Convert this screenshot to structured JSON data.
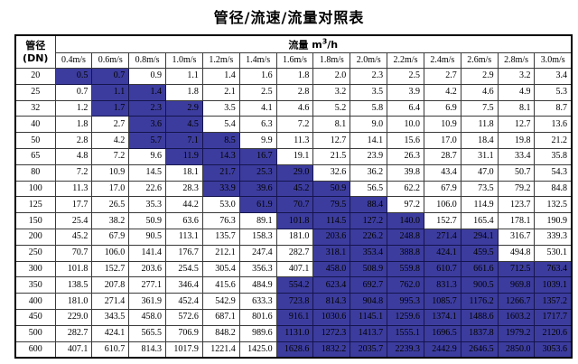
{
  "title": "管径/流速/流量对照表",
  "colors": {
    "highlight": "#3C3C9E",
    "grid": "#3a3a3a",
    "outer_border": "#000000",
    "text": "#000000"
  },
  "table": {
    "corner": {
      "line1": "管径",
      "line2": "(DN)"
    },
    "flow_header": {
      "label": "流量",
      "unit_base": "m",
      "unit_sup": "3",
      "unit_rest": "/h"
    },
    "velocity_headers": [
      "0.4m/s",
      "0.6m/s",
      "0.8m/s",
      "1.0m/s",
      "1.2m/s",
      "1.4m/s",
      "1.6m/s",
      "1.8m/s",
      "2.0m/s",
      "2.2m/s",
      "2.4m/s",
      "2.6m/s",
      "2.8m/s",
      "3.0m/s"
    ],
    "rows": [
      {
        "dn": "20",
        "values": [
          "0.5",
          "0.7",
          "0.9",
          "1.1",
          "1.4",
          "1.6",
          "1.8",
          "2.0",
          "2.3",
          "2.5",
          "2.7",
          "2.9",
          "3.2",
          "3.4"
        ],
        "highlight": [
          0,
          1
        ]
      },
      {
        "dn": "25",
        "values": [
          "0.7",
          "1.1",
          "1.4",
          "1.8",
          "2.1",
          "2.5",
          "2.8",
          "3.2",
          "3.5",
          "3.9",
          "4.2",
          "4.6",
          "4.9",
          "5.3"
        ],
        "highlight": [
          1,
          2
        ]
      },
      {
        "dn": "32",
        "values": [
          "1.2",
          "1.7",
          "2.3",
          "2.9",
          "3.5",
          "4.1",
          "4.6",
          "5.2",
          "5.8",
          "6.4",
          "6.9",
          "7.5",
          "8.1",
          "8.7"
        ],
        "highlight": [
          1,
          3
        ]
      },
      {
        "dn": "40",
        "values": [
          "1.8",
          "2.7",
          "3.6",
          "4.5",
          "5.4",
          "6.3",
          "7.2",
          "8.1",
          "9.0",
          "10.0",
          "10.9",
          "11.8",
          "12.7",
          "13.6"
        ],
        "highlight": [
          2,
          3
        ]
      },
      {
        "dn": "50",
        "values": [
          "2.8",
          "4.2",
          "5.7",
          "7.1",
          "8.5",
          "9.9",
          "11.3",
          "12.7",
          "14.1",
          "15.6",
          "17.0",
          "18.4",
          "19.8",
          "21.2"
        ],
        "highlight": [
          2,
          4
        ]
      },
      {
        "dn": "65",
        "values": [
          "4.8",
          "7.2",
          "9.6",
          "11.9",
          "14.3",
          "16.7",
          "19.1",
          "21.5",
          "23.9",
          "26.3",
          "28.7",
          "31.1",
          "33.4",
          "35.8"
        ],
        "highlight": [
          3,
          5
        ]
      },
      {
        "dn": "80",
        "values": [
          "7.2",
          "10.9",
          "14.5",
          "18.1",
          "21.7",
          "25.3",
          "29.0",
          "32.6",
          "36.2",
          "39.8",
          "43.4",
          "47.0",
          "50.7",
          "54.3"
        ],
        "highlight": [
          4,
          6
        ]
      },
      {
        "dn": "100",
        "values": [
          "11.3",
          "17.0",
          "22.6",
          "28.3",
          "33.9",
          "39.6",
          "45.2",
          "50.9",
          "56.5",
          "62.2",
          "67.9",
          "73.5",
          "79.2",
          "84.8"
        ],
        "highlight": [
          4,
          7
        ]
      },
      {
        "dn": "125",
        "values": [
          "17.7",
          "26.5",
          "35.3",
          "44.2",
          "53.0",
          "61.9",
          "70.7",
          "79.5",
          "88.4",
          "97.2",
          "106.0",
          "114.9",
          "123.7",
          "132.5"
        ],
        "highlight": [
          5,
          8
        ]
      },
      {
        "dn": "150",
        "values": [
          "25.4",
          "38.2",
          "50.9",
          "63.6",
          "76.3",
          "89.1",
          "101.8",
          "114.5",
          "127.2",
          "140.0",
          "152.7",
          "165.4",
          "178.1",
          "190.9"
        ],
        "highlight": [
          6,
          9
        ]
      },
      {
        "dn": "200",
        "values": [
          "45.2",
          "67.9",
          "90.5",
          "113.1",
          "135.7",
          "158.3",
          "181.0",
          "203.6",
          "226.2",
          "248.8",
          "271.4",
          "294.1",
          "316.7",
          "339.3"
        ],
        "highlight": [
          7,
          11
        ]
      },
      {
        "dn": "250",
        "values": [
          "70.7",
          "106.0",
          "141.4",
          "176.7",
          "212.1",
          "247.4",
          "282.7",
          "318.1",
          "353.4",
          "388.8",
          "424.1",
          "459.5",
          "494.8",
          "530.1"
        ],
        "highlight": [
          7,
          11
        ]
      },
      {
        "dn": "300",
        "values": [
          "101.8",
          "152.7",
          "203.6",
          "254.5",
          "305.4",
          "356.3",
          "407.1",
          "458.0",
          "508.9",
          "559.8",
          "610.7",
          "661.6",
          "712.5",
          "763.4"
        ],
        "highlight": [
          7,
          13
        ]
      },
      {
        "dn": "350",
        "values": [
          "138.5",
          "207.8",
          "277.1",
          "346.4",
          "415.6",
          "484.9",
          "554.2",
          "623.4",
          "692.7",
          "762.0",
          "831.3",
          "900.5",
          "969.8",
          "1039.1"
        ],
        "highlight": [
          6,
          13
        ]
      },
      {
        "dn": "400",
        "values": [
          "181.0",
          "271.4",
          "361.9",
          "452.4",
          "542.9",
          "633.3",
          "723.8",
          "814.3",
          "904.8",
          "995.3",
          "1085.7",
          "1176.2",
          "1266.7",
          "1357.2"
        ],
        "highlight": [
          6,
          13
        ]
      },
      {
        "dn": "450",
        "values": [
          "229.0",
          "343.5",
          "458.0",
          "572.6",
          "687.1",
          "801.6",
          "916.1",
          "1030.6",
          "1145.1",
          "1259.6",
          "1374.1",
          "1488.6",
          "1603.2",
          "1717.7"
        ],
        "highlight": [
          6,
          13
        ]
      },
      {
        "dn": "500",
        "values": [
          "282.7",
          "424.1",
          "565.5",
          "706.9",
          "848.2",
          "989.6",
          "1131.0",
          "1272.3",
          "1413.7",
          "1555.1",
          "1696.5",
          "1837.8",
          "1979.2",
          "2120.6"
        ],
        "highlight": [
          6,
          13
        ]
      },
      {
        "dn": "600",
        "values": [
          "407.1",
          "610.7",
          "814.3",
          "1017.9",
          "1221.4",
          "1425.0",
          "1628.6",
          "1832.2",
          "2035.7",
          "2239.3",
          "2442.9",
          "2646.5",
          "2850.0",
          "3053.6"
        ],
        "highlight": [
          6,
          13
        ]
      }
    ]
  }
}
